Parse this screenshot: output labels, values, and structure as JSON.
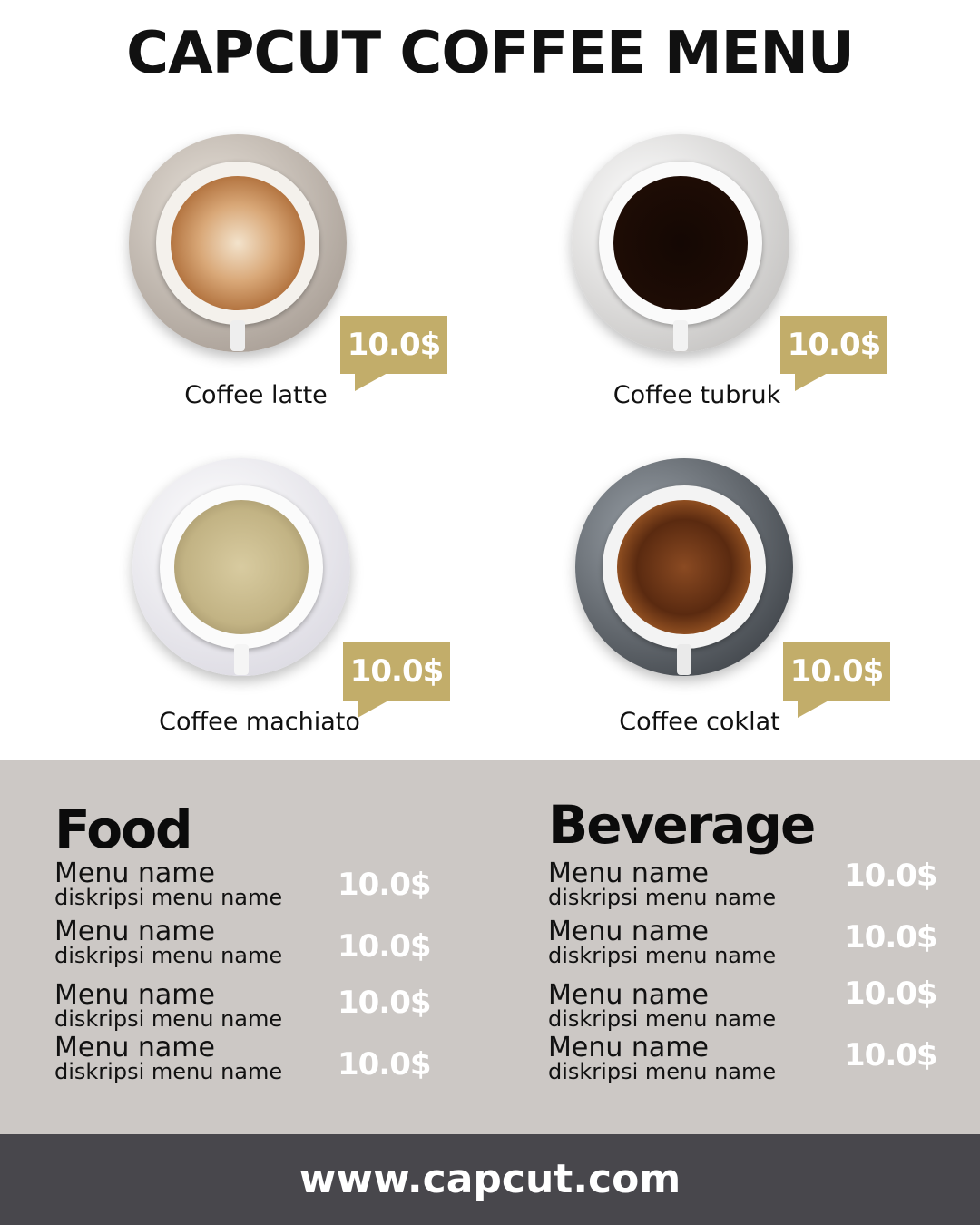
{
  "title": "CAPCUT COFFEE MENU",
  "colors": {
    "gold": "#c2ad6a",
    "panel": "#ccc8c5",
    "footer": "#48474c"
  },
  "coffees": [
    {
      "name": "Coffee latte",
      "price": "10.0$"
    },
    {
      "name": "Coffee tubruk",
      "price": "10.0$"
    },
    {
      "name": "Coffee machiato",
      "price": "10.0$"
    },
    {
      "name": "Coffee coklat",
      "price": "10.0$"
    }
  ],
  "food": {
    "title": "Food",
    "items": [
      {
        "name": "Menu name",
        "desc": "diskripsi menu name",
        "price": "10.0$"
      },
      {
        "name": "Menu name",
        "desc": "diskripsi menu name",
        "price": "10.0$"
      },
      {
        "name": "Menu name",
        "desc": "diskripsi menu name",
        "price": "10.0$"
      },
      {
        "name": "Menu name",
        "desc": "diskripsi menu name",
        "price": "10.0$"
      }
    ]
  },
  "beverage": {
    "title": "Beverage",
    "items": [
      {
        "name": "Menu name",
        "desc": "diskripsi menu name",
        "price": "10.0$"
      },
      {
        "name": "Menu name",
        "desc": "diskripsi menu name",
        "price": "10.0$"
      },
      {
        "name": "Menu name",
        "desc": "diskripsi menu name",
        "price": "10.0$"
      },
      {
        "name": "Menu name",
        "desc": "diskripsi menu name",
        "price": "10.0$"
      }
    ]
  },
  "footer": {
    "url": "www.capcut.com"
  }
}
